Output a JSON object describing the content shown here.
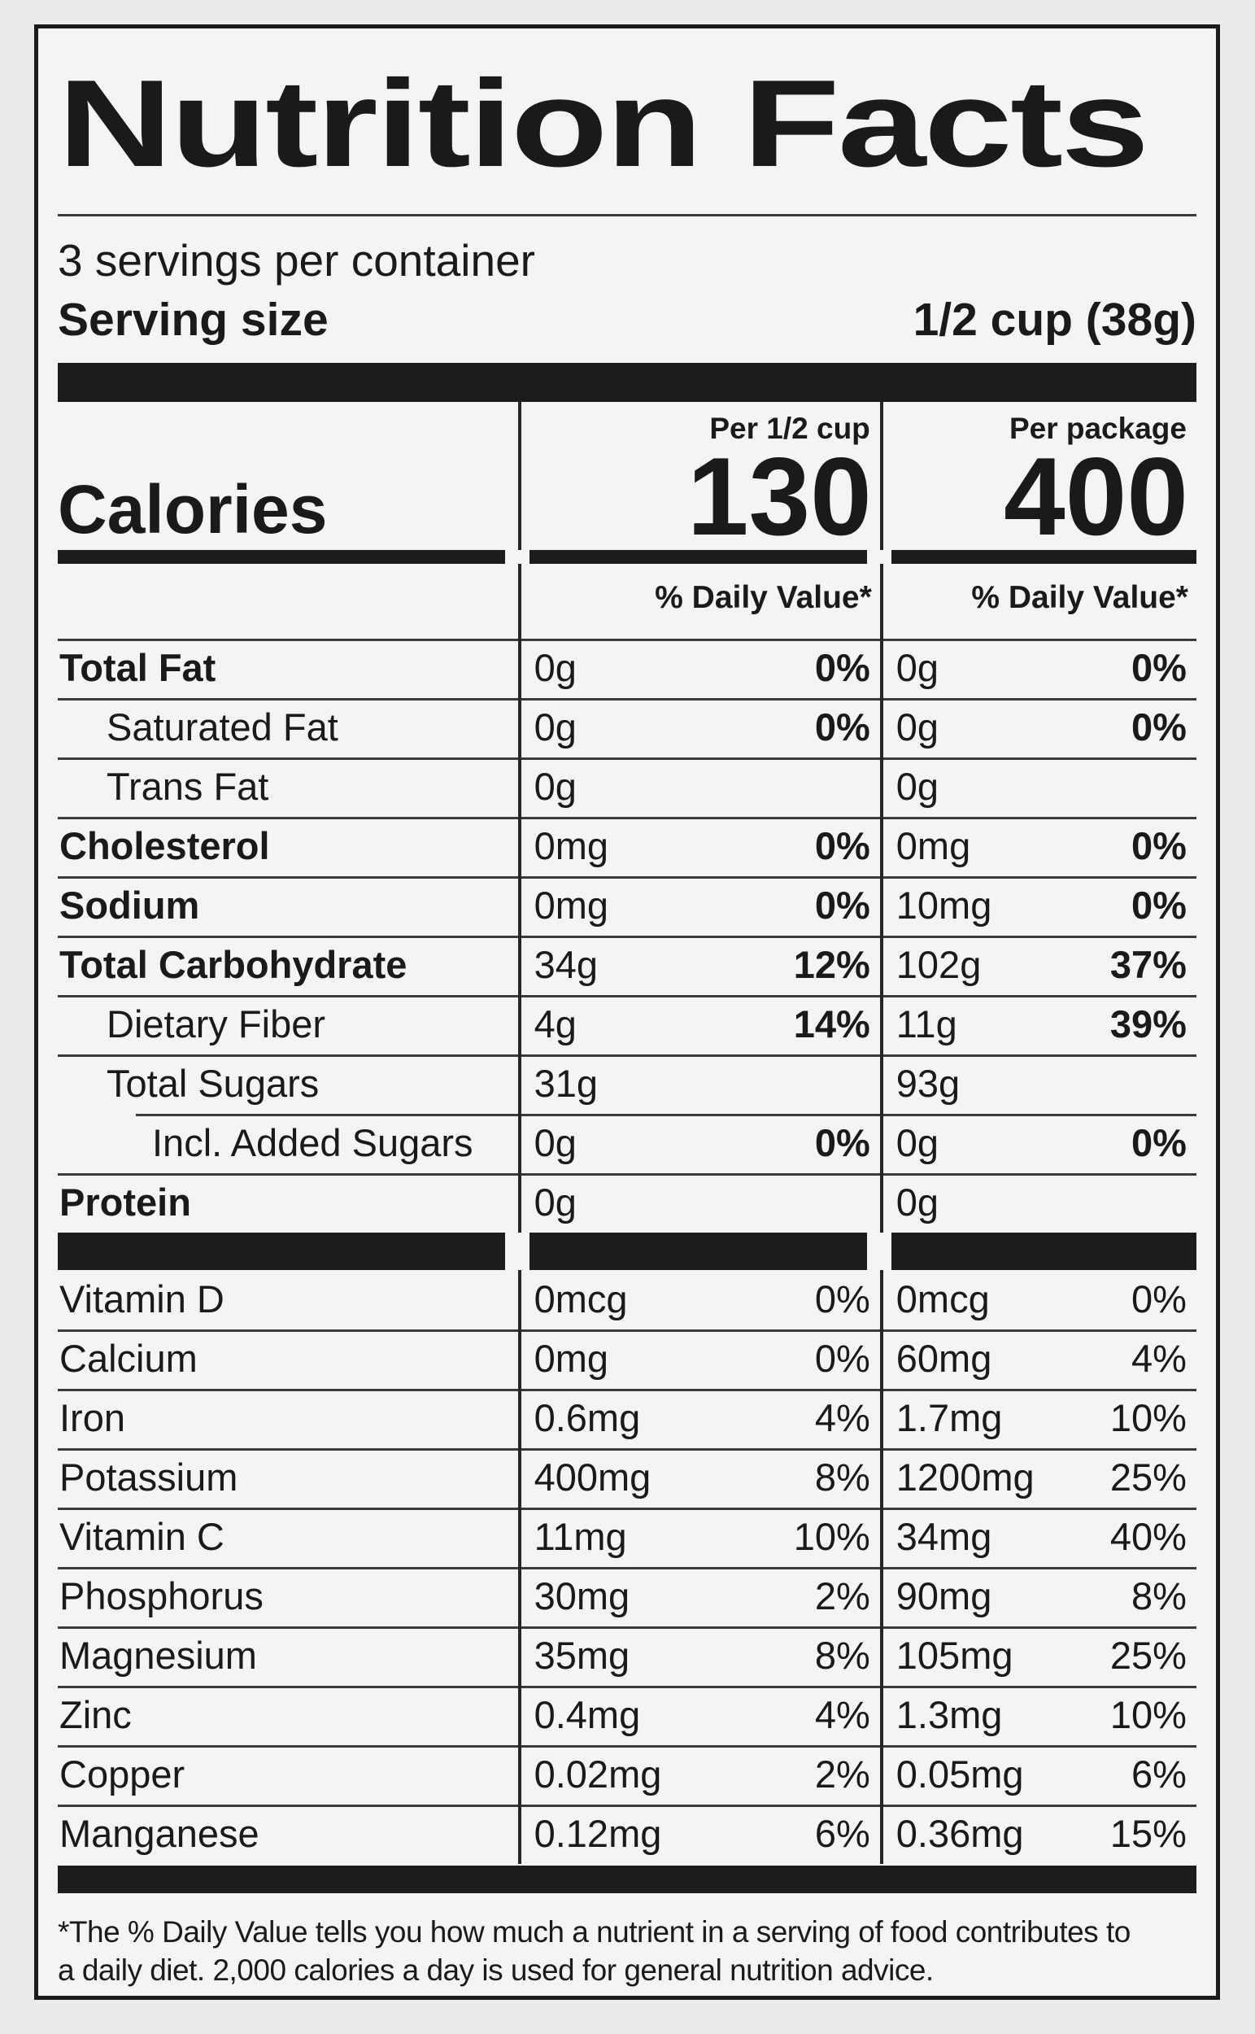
{
  "colors": {
    "page_bg": "#ebebe9",
    "paper": "#f4f4f2",
    "ink": "#1a1a1a",
    "rule": "#3a3a3a",
    "bar": "#1c1c1c"
  },
  "label": {
    "title": "Nutrition Facts",
    "servings_per_container": "3 servings per container",
    "serving_size_label": "Serving size",
    "serving_size_value": "1/2 cup (38g)",
    "calories_label": "Calories",
    "columns": {
      "per_serving_header": "Per 1/2 cup",
      "per_package_header": "Per package",
      "per_serving_calories": "130",
      "per_package_calories": "400"
    },
    "daily_value_header": "% Daily Value*",
    "nutrients": [
      {
        "name": "Total Fat",
        "bold": true,
        "indent": 0,
        "per_serving": {
          "amount": "0g",
          "dv": "0%"
        },
        "per_package": {
          "amount": "0g",
          "dv": "0%"
        }
      },
      {
        "name": "Saturated Fat",
        "bold": false,
        "indent": 1,
        "per_serving": {
          "amount": "0g",
          "dv": "0%"
        },
        "per_package": {
          "amount": "0g",
          "dv": "0%"
        }
      },
      {
        "name": "Trans Fat",
        "bold": false,
        "indent": 1,
        "per_serving": {
          "amount": "0g",
          "dv": ""
        },
        "per_package": {
          "amount": "0g",
          "dv": ""
        }
      },
      {
        "name": "Cholesterol",
        "bold": true,
        "indent": 0,
        "per_serving": {
          "amount": "0mg",
          "dv": "0%"
        },
        "per_package": {
          "amount": "0mg",
          "dv": "0%"
        }
      },
      {
        "name": "Sodium",
        "bold": true,
        "indent": 0,
        "per_serving": {
          "amount": "0mg",
          "dv": "0%"
        },
        "per_package": {
          "amount": "10mg",
          "dv": "0%"
        }
      },
      {
        "name": "Total Carbohydrate",
        "bold": true,
        "indent": 0,
        "per_serving": {
          "amount": "34g",
          "dv": "12%"
        },
        "per_package": {
          "amount": "102g",
          "dv": "37%"
        }
      },
      {
        "name": "Dietary Fiber",
        "bold": false,
        "indent": 1,
        "per_serving": {
          "amount": "4g",
          "dv": "14%"
        },
        "per_package": {
          "amount": "11g",
          "dv": "39%"
        }
      },
      {
        "name": "Total Sugars",
        "bold": false,
        "indent": 1,
        "per_serving": {
          "amount": "31g",
          "dv": ""
        },
        "per_package": {
          "amount": "93g",
          "dv": ""
        }
      },
      {
        "name": "Incl. Added Sugars",
        "bold": false,
        "indent": 2,
        "rule_indent": true,
        "per_serving": {
          "amount": "0g",
          "dv": "0%"
        },
        "per_package": {
          "amount": "0g",
          "dv": "0%"
        }
      },
      {
        "name": "Protein",
        "bold": true,
        "indent": 0,
        "per_serving": {
          "amount": "0g",
          "dv": ""
        },
        "per_package": {
          "amount": "0g",
          "dv": ""
        }
      }
    ],
    "vitamins": [
      {
        "name": "Vitamin D",
        "per_serving": {
          "amount": "0mcg",
          "dv": "0%"
        },
        "per_package": {
          "amount": "0mcg",
          "dv": "0%"
        }
      },
      {
        "name": "Calcium",
        "per_serving": {
          "amount": "0mg",
          "dv": "0%"
        },
        "per_package": {
          "amount": "60mg",
          "dv": "4%"
        }
      },
      {
        "name": "Iron",
        "per_serving": {
          "amount": "0.6mg",
          "dv": "4%"
        },
        "per_package": {
          "amount": "1.7mg",
          "dv": "10%"
        }
      },
      {
        "name": "Potassium",
        "per_serving": {
          "amount": "400mg",
          "dv": "8%"
        },
        "per_package": {
          "amount": "1200mg",
          "dv": "25%"
        }
      },
      {
        "name": "Vitamin C",
        "per_serving": {
          "amount": "11mg",
          "dv": "10%"
        },
        "per_package": {
          "amount": "34mg",
          "dv": "40%"
        }
      },
      {
        "name": "Phosphorus",
        "per_serving": {
          "amount": "30mg",
          "dv": "2%"
        },
        "per_package": {
          "amount": "90mg",
          "dv": "8%"
        }
      },
      {
        "name": "Magnesium",
        "per_serving": {
          "amount": "35mg",
          "dv": "8%"
        },
        "per_package": {
          "amount": "105mg",
          "dv": "25%"
        }
      },
      {
        "name": "Zinc",
        "per_serving": {
          "amount": "0.4mg",
          "dv": "4%"
        },
        "per_package": {
          "amount": "1.3mg",
          "dv": "10%"
        }
      },
      {
        "name": "Copper",
        "per_serving": {
          "amount": "0.02mg",
          "dv": "2%"
        },
        "per_package": {
          "amount": "0.05mg",
          "dv": "6%"
        }
      },
      {
        "name": "Manganese",
        "per_serving": {
          "amount": "0.12mg",
          "dv": "6%"
        },
        "per_package": {
          "amount": "0.36mg",
          "dv": "15%"
        }
      }
    ],
    "footnote_lines": [
      "*The % Daily Value tells you how much a nutrient in a serving of food contributes to",
      "a daily diet. 2,000 calories a day is used for general nutrition advice."
    ]
  }
}
